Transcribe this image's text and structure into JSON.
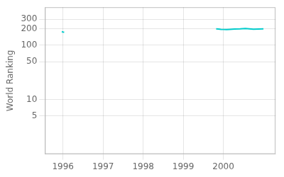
{
  "chart_data": {
    "type": "line",
    "ylabel": "World Ranking",
    "color": "#00cccc",
    "series": [
      {
        "x": [
          1995.97,
          1996.0,
          1996.03
        ],
        "values": [
          178,
          175,
          174
        ]
      },
      {
        "x": [
          1999.82,
          1999.88,
          1999.94,
          2000.0,
          2000.08,
          2000.16,
          2000.28,
          2000.42,
          2000.55,
          2000.65,
          2000.75,
          2000.88,
          2001.0
        ],
        "values": [
          200,
          198,
          196,
          195,
          194,
          196,
          198,
          200,
          203,
          200,
          197,
          199,
          200
        ]
      }
    ],
    "log": "y",
    "xlim": [
      1995.55,
      2001.3
    ],
    "ylim": [
      1,
      500
    ],
    "xticks": [
      1996,
      1997,
      1998,
      1999,
      2000
    ],
    "yticks": [
      5,
      10,
      50,
      100,
      200,
      300
    ],
    "grid": true
  }
}
